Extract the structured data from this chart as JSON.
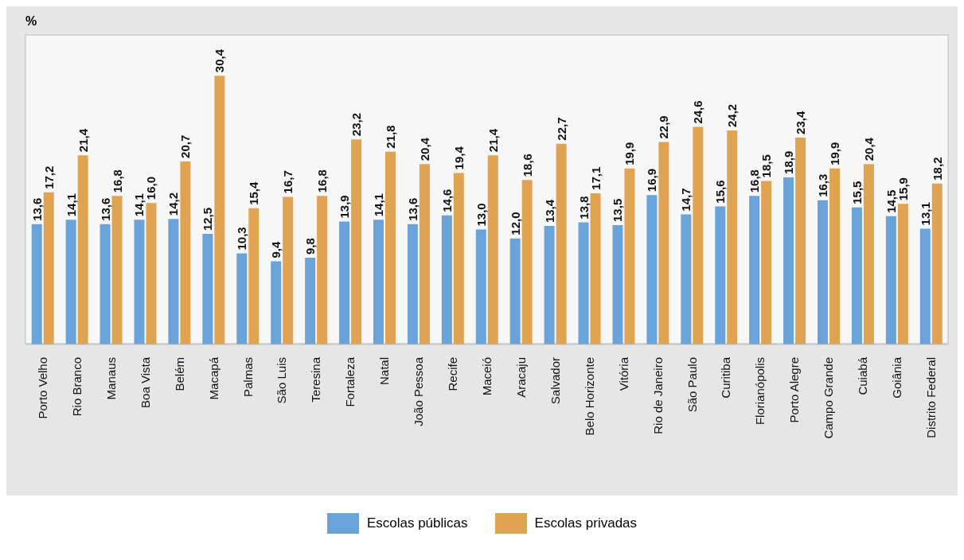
{
  "chart_data": {
    "type": "bar",
    "ylabel": "%",
    "categories": [
      "Porto Velho",
      "Rio Branco",
      "Manaus",
      "Boa Vista",
      "Belém",
      "Macapá",
      "Palmas",
      "São Luis",
      "Teresina",
      "Fortaleza",
      "Natal",
      "João Pessoa",
      "Recife",
      "Maceió",
      "Aracaju",
      "Salvador",
      "Belo Horizonte",
      "Vitória",
      "Rio de Janeiro",
      "São Paulo",
      "Curitiba",
      "Florianópolis",
      "Porto Alegre",
      "Campo Grande",
      "Cuiabá",
      "Goiânia",
      "Distrito Federal"
    ],
    "series": [
      {
        "name": "Escolas públicas",
        "color": "#6aa3da",
        "values": [
          13.6,
          14.1,
          13.6,
          14.1,
          14.2,
          12.5,
          10.3,
          9.4,
          9.8,
          13.9,
          14.1,
          13.6,
          14.6,
          13.0,
          12.0,
          13.4,
          13.8,
          13.5,
          16.9,
          14.7,
          15.6,
          16.8,
          18.9,
          16.3,
          15.5,
          14.5,
          13.1
        ],
        "value_labels": [
          "13,6",
          "14,1",
          "13,6",
          "14,1",
          "14,2",
          "12,5",
          "10,3",
          "9,4",
          "9,8",
          "13,9",
          "14,1",
          "13,6",
          "14,6",
          "13,0",
          "12,0",
          "13,4",
          "13,8",
          "13,5",
          "16,9",
          "14,7",
          "15,6",
          "16,8",
          "18,9",
          "16,3",
          "15,5",
          "14,5",
          "13,1"
        ]
      },
      {
        "name": "Escolas privadas",
        "color": "#e0a352",
        "values": [
          17.2,
          21.4,
          16.8,
          16.0,
          20.7,
          30.4,
          15.4,
          16.7,
          16.8,
          23.2,
          21.8,
          20.4,
          19.4,
          21.4,
          18.6,
          22.7,
          17.1,
          19.9,
          22.9,
          24.6,
          24.2,
          18.5,
          23.4,
          19.9,
          20.4,
          15.9,
          18.2
        ],
        "value_labels": [
          "17,2",
          "21,4",
          "16,8",
          "16,0",
          "20,7",
          "30,4",
          "15,4",
          "16,7",
          "16,8",
          "23,2",
          "21,8",
          "20,4",
          "19,4",
          "21,4",
          "18,6",
          "22,7",
          "17,1",
          "19,9",
          "22,9",
          "24,6",
          "24,2",
          "18,5",
          "23,4",
          "19,9",
          "20,4",
          "15,9",
          "18,2"
        ]
      }
    ],
    "ylim": [
      0,
      35
    ],
    "legend": "bottom",
    "grid": false
  }
}
